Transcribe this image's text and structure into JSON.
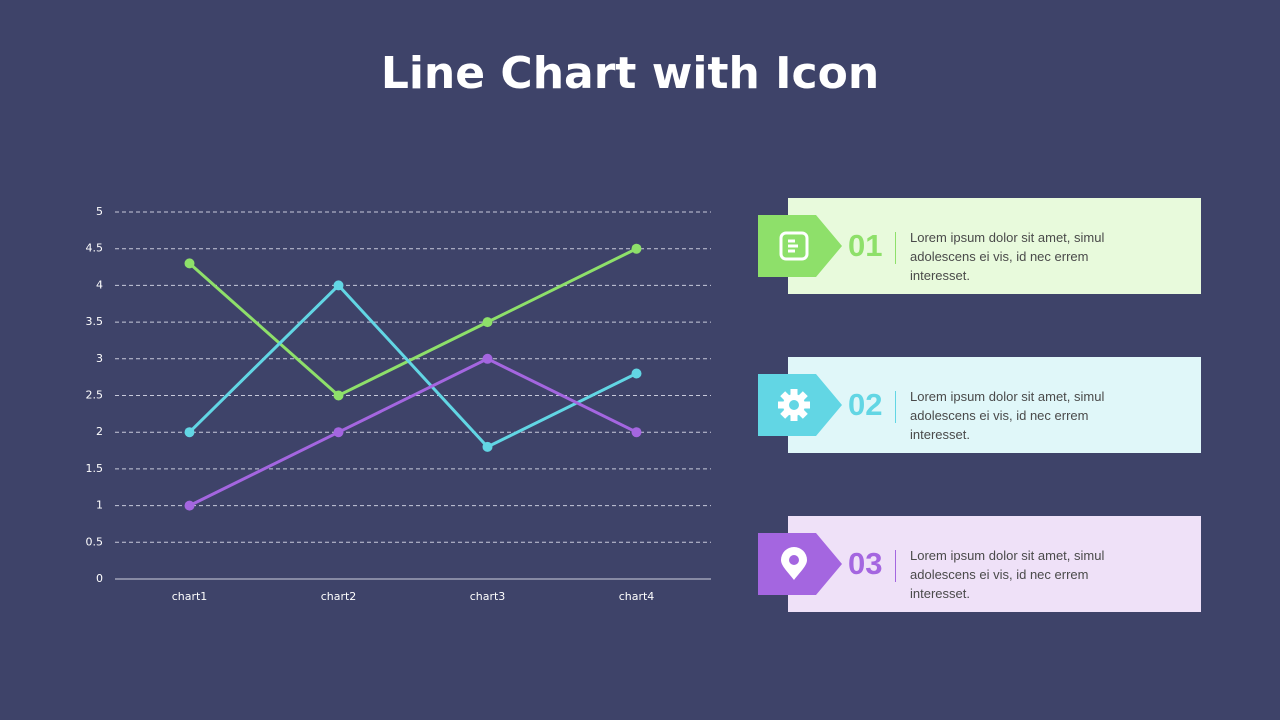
{
  "chart_data": {
    "type": "line",
    "title": "Line Chart with Icon",
    "categories": [
      "chart1",
      "chart2",
      "chart3",
      "chart4"
    ],
    "series": [
      {
        "color": "#8ee06a",
        "values": [
          4.3,
          2.5,
          3.5,
          4.5
        ]
      },
      {
        "color": "#62d6e4",
        "values": [
          2,
          4,
          1.8,
          2.8
        ]
      },
      {
        "color": "#a466e0",
        "values": [
          1,
          2,
          3,
          2
        ]
      }
    ],
    "ylim": [
      0,
      5
    ],
    "yticks": [
      0,
      0.5,
      1,
      1.5,
      2,
      2.5,
      3,
      3.5,
      4,
      4.5,
      5
    ],
    "grid": true
  },
  "cards": [
    {
      "number": "01",
      "text": "Lorem ipsum dolor sit amet, simul adolescens ei vis, id nec errem interesset.",
      "color": "#8ee06a",
      "background": "#e8fadc"
    },
    {
      "number": "02",
      "text": "Lorem ipsum dolor sit amet, simul adolescens ei vis, id nec errem interesset.",
      "color": "#62d6e4",
      "background": "#e0f7f9"
    },
    {
      "number": "03",
      "text": "Lorem ipsum dolor sit amet, simul adolescens ei vis, id nec errem interesset.",
      "color": "#a466e0",
      "background": "#efe1f8"
    }
  ]
}
